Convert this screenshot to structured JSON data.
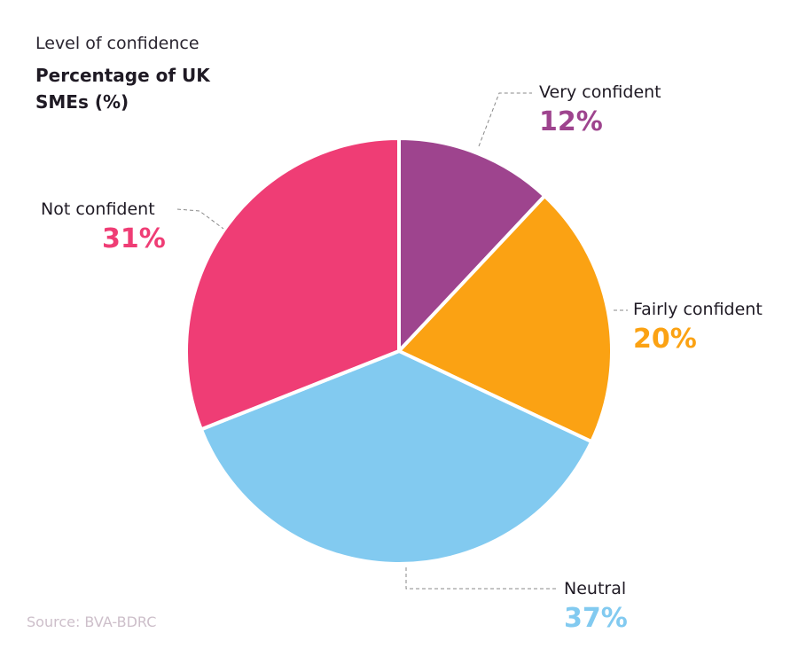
{
  "chart_data": {
    "type": "pie",
    "title": "Level of confidence",
    "subtitle": "Percentage of UK SMEs (%)",
    "start": "12 o'clock, clockwise",
    "slices": [
      {
        "label": "Very confident",
        "value": 12,
        "display": "12%",
        "color": "#9e448e"
      },
      {
        "label": "Fairly confident",
        "value": 20,
        "display": "20%",
        "color": "#fba213"
      },
      {
        "label": "Neutral",
        "value": 37,
        "display": "37%",
        "color": "#82caf0"
      },
      {
        "label": "Not confident",
        "value": 31,
        "display": "31%",
        "color": "#ef3d75"
      }
    ],
    "legend": "none",
    "source": "Source: BVA-BDRC"
  }
}
